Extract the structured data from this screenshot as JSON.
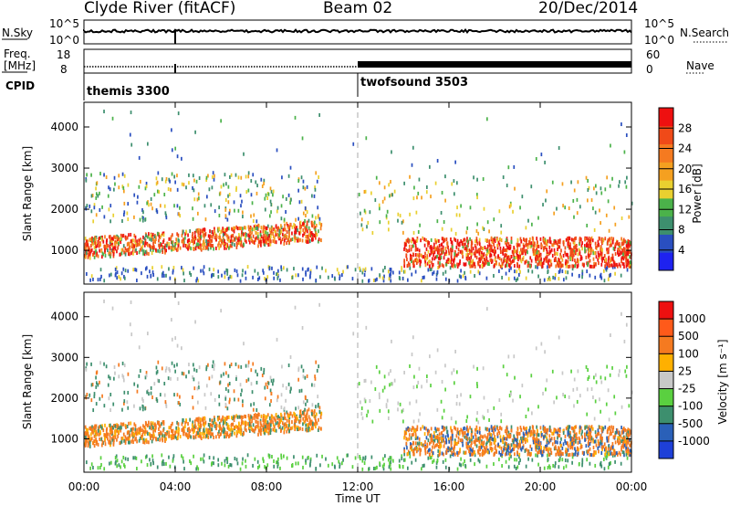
{
  "header": {
    "title": "Clyde River (fitACF)",
    "beam": "Beam 02",
    "date": "20/Dec/2014"
  },
  "strips": {
    "nsky_label": "N.Sky",
    "nsearch_label": "N.Search",
    "nsky_ticks": [
      "10^5",
      "10^0"
    ],
    "nsearch_ticks": [
      "10^5",
      "10^0"
    ],
    "freq_label_line1": "Freq.",
    "freq_label_line2": "[MHz]",
    "freq_ticks": [
      "18",
      "8"
    ],
    "nave_label": "Nave",
    "nave_ticks": [
      "60",
      "0"
    ],
    "cpid_label": "CPID",
    "cpid_1": "themis 3300",
    "cpid_2": "twofsound 3503"
  },
  "colors": {
    "power": [
      "#1e22f0",
      "#2a4fc0",
      "#3d8f6e",
      "#4bb24a",
      "#e9d030",
      "#f5a020",
      "#f57a20",
      "#f04a18",
      "#ee1010"
    ],
    "velocity": [
      "#ee1010",
      "#ff5a1a",
      "#f57a20",
      "#ffb000",
      "#c8c8c8",
      "#5ad040",
      "#3d8f6e",
      "#2a60b8",
      "#1e40d8"
    ]
  },
  "chart_data": [
    {
      "type": "heatmap",
      "panel": "power",
      "xlabel": "Time UT",
      "ylabel": "Slant Range [km]",
      "x_ticks": [
        "00:00",
        "04:00",
        "08:00",
        "12:00",
        "16:00",
        "20:00",
        "00:00"
      ],
      "x_range_hours": [
        0,
        24
      ],
      "ylim": [
        180,
        4600
      ],
      "y_ticks": [
        1000,
        2000,
        3000,
        4000
      ],
      "colorbar_label": "Power [dB]",
      "colorbar_ticks": [
        4,
        8,
        12,
        16,
        20,
        24,
        28
      ],
      "colorbar_range": [
        0,
        32
      ]
    },
    {
      "type": "heatmap",
      "panel": "velocity",
      "xlabel": "Time UT",
      "ylabel": "Slant Range [km]",
      "x_ticks": [
        "00:00",
        "04:00",
        "08:00",
        "12:00",
        "16:00",
        "20:00",
        "00:00"
      ],
      "x_range_hours": [
        0,
        24
      ],
      "ylim": [
        180,
        4600
      ],
      "y_ticks": [
        1000,
        2000,
        3000,
        4000
      ],
      "colorbar_label": "Velocity [m s⁻¹]",
      "colorbar_ticks": [
        1000,
        500,
        100,
        25,
        -25,
        -100,
        -500,
        -1000
      ]
    }
  ]
}
